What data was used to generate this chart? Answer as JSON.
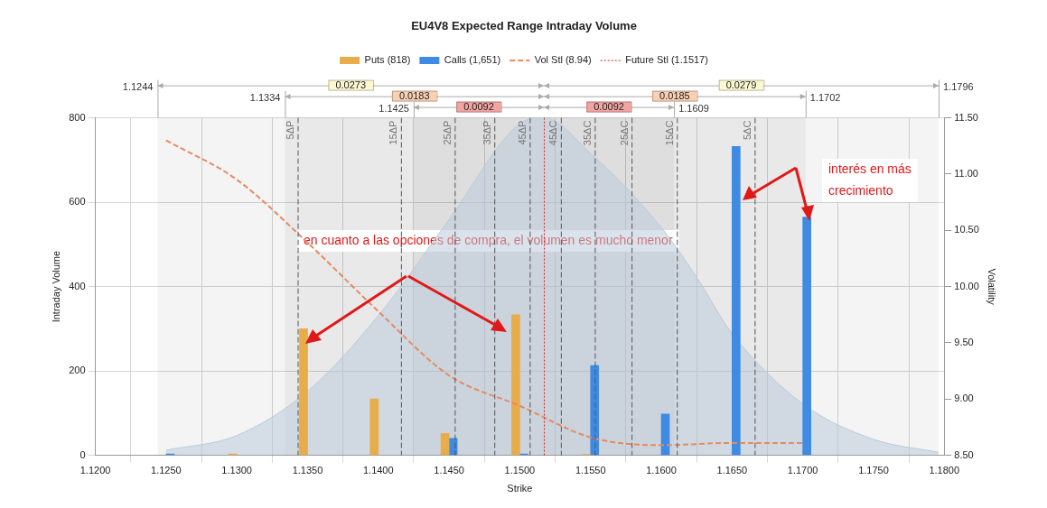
{
  "chart_data": {
    "type": "bar",
    "title": "EU4V8 Expected Range Intraday Volume",
    "xlabel": "Strike",
    "ylabel": "Intraday Volume",
    "y2label": "Volatility",
    "xlim": [
      1.12,
      1.18
    ],
    "xticks": [
      {
        "value": 1.12,
        "label": "1.1200"
      },
      {
        "value": 1.125,
        "label": "1.1250"
      },
      {
        "value": 1.13,
        "label": "1.1300"
      },
      {
        "value": 1.135,
        "label": "1.1350"
      },
      {
        "value": 1.14,
        "label": "1.1400"
      },
      {
        "value": 1.145,
        "label": "1.1450"
      },
      {
        "value": 1.15,
        "label": "1.1500"
      },
      {
        "value": 1.155,
        "label": "1.1550"
      },
      {
        "value": 1.16,
        "label": "1.1600"
      },
      {
        "value": 1.165,
        "label": "1.1650"
      },
      {
        "value": 1.17,
        "label": "1.1700"
      },
      {
        "value": 1.175,
        "label": "1.1750"
      },
      {
        "value": 1.18,
        "label": "1.1800"
      }
    ],
    "ylim": [
      0,
      800
    ],
    "yticks": [
      0,
      200,
      400,
      600,
      800
    ],
    "y2lim": [
      8.5,
      11.5
    ],
    "y2ticks": [
      {
        "value": 8.5,
        "label": "8.50"
      },
      {
        "value": 9,
        "label": "9.00"
      },
      {
        "value": 9.5,
        "label": "9.50"
      },
      {
        "value": 10,
        "label": "10.00"
      },
      {
        "value": 10.5,
        "label": "10.50"
      },
      {
        "value": 11,
        "label": "11.00"
      },
      {
        "value": 11.5,
        "label": "11.50"
      }
    ],
    "grid": true,
    "legend": "top",
    "marker": "none",
    "x": [
      1.125,
      1.13,
      1.135,
      1.14,
      1.145,
      1.15,
      1.155,
      1.16,
      1.165,
      1.17
    ],
    "series": [
      {
        "name": "Puts (818)",
        "color": "#e8ac48",
        "values": [
          null,
          3,
          300,
          134,
          52,
          333,
          2,
          null,
          null,
          null
        ]
      },
      {
        "name": "Calls (1,651)",
        "color": "#3f8ae2",
        "values": [
          3,
          null,
          null,
          null,
          40,
          3,
          213,
          98,
          732,
          565
        ]
      },
      {
        "name": "Vol Stl (8.94)",
        "type": "line",
        "axis": "y2",
        "color": "#e58b62",
        "line_style": "dashed",
        "values": [
          11.3,
          10.95,
          10.39,
          9.78,
          9.21,
          8.94,
          8.66,
          8.59,
          8.61,
          8.61
        ]
      },
      {
        "type": "area",
        "color": "#b9cbd9",
        "x": [
          1.125,
          1.13,
          1.135,
          1.14,
          1.145,
          1.15,
          1.1517,
          1.155,
          1.16,
          1.1625,
          1.165,
          1.17,
          1.175,
          1.1796
        ],
        "values": [
          12,
          47,
          152,
          331,
          559,
          786,
          800,
          716,
          540,
          422,
          289,
          122,
          38,
          7
        ]
      }
    ],
    "ref_lines": [
      {
        "axis": "x",
        "value": 1.1343,
        "label": "5ΔP",
        "line_style": "dashed"
      },
      {
        "axis": "x",
        "value": 1.1416,
        "label": "15ΔP",
        "line_style": "dashed"
      },
      {
        "axis": "x",
        "value": 1.1454,
        "label": "25ΔP",
        "line_style": "dashed"
      },
      {
        "axis": "x",
        "value": 1.1482,
        "label": "35ΔP",
        "line_style": "dashed"
      },
      {
        "axis": "x",
        "value": 1.1507,
        "label": "45ΔP",
        "line_style": "dashed"
      },
      {
        "axis": "x",
        "value": 1.1517,
        "label": "Future Stl (1.1517)",
        "line_style": "dotted",
        "color": "#d42020"
      },
      {
        "axis": "x",
        "value": 1.1529,
        "label": "45ΔC",
        "line_style": "dashed"
      },
      {
        "axis": "x",
        "value": 1.1553,
        "label": "35ΔC",
        "line_style": "dashed"
      },
      {
        "axis": "x",
        "value": 1.1579,
        "label": "25ΔC",
        "line_style": "dashed"
      },
      {
        "axis": "x",
        "value": 1.1611,
        "label": "15ΔC",
        "line_style": "dashed"
      },
      {
        "axis": "x",
        "value": 1.1666,
        "label": "5ΔC",
        "line_style": "dashed"
      }
    ],
    "bands": [
      {
        "axis": "x",
        "from": 1.1244,
        "to": 1.1517,
        "label": "0.0273"
      },
      {
        "axis": "x",
        "from": 1.1517,
        "to": 1.1796,
        "label": "0.0279"
      },
      {
        "axis": "x",
        "from": 1.1334,
        "to": 1.1517,
        "label": "0.0183"
      },
      {
        "axis": "x",
        "from": 1.1517,
        "to": 1.1702,
        "label": "0.0185"
      },
      {
        "axis": "x",
        "from": 1.1425,
        "to": 1.1517,
        "label": "0.0092"
      },
      {
        "axis": "x",
        "from": 1.1517,
        "to": 1.1609,
        "label": "0.0092"
      }
    ],
    "annotations": [
      "en cuanto a las opciones de compra, el volumen es mucho menor",
      "interés en más crecimiento",
      "1.1244",
      "1.1796",
      "1.1334",
      "1.1702",
      "1.1425",
      "1.1609"
    ]
  }
}
